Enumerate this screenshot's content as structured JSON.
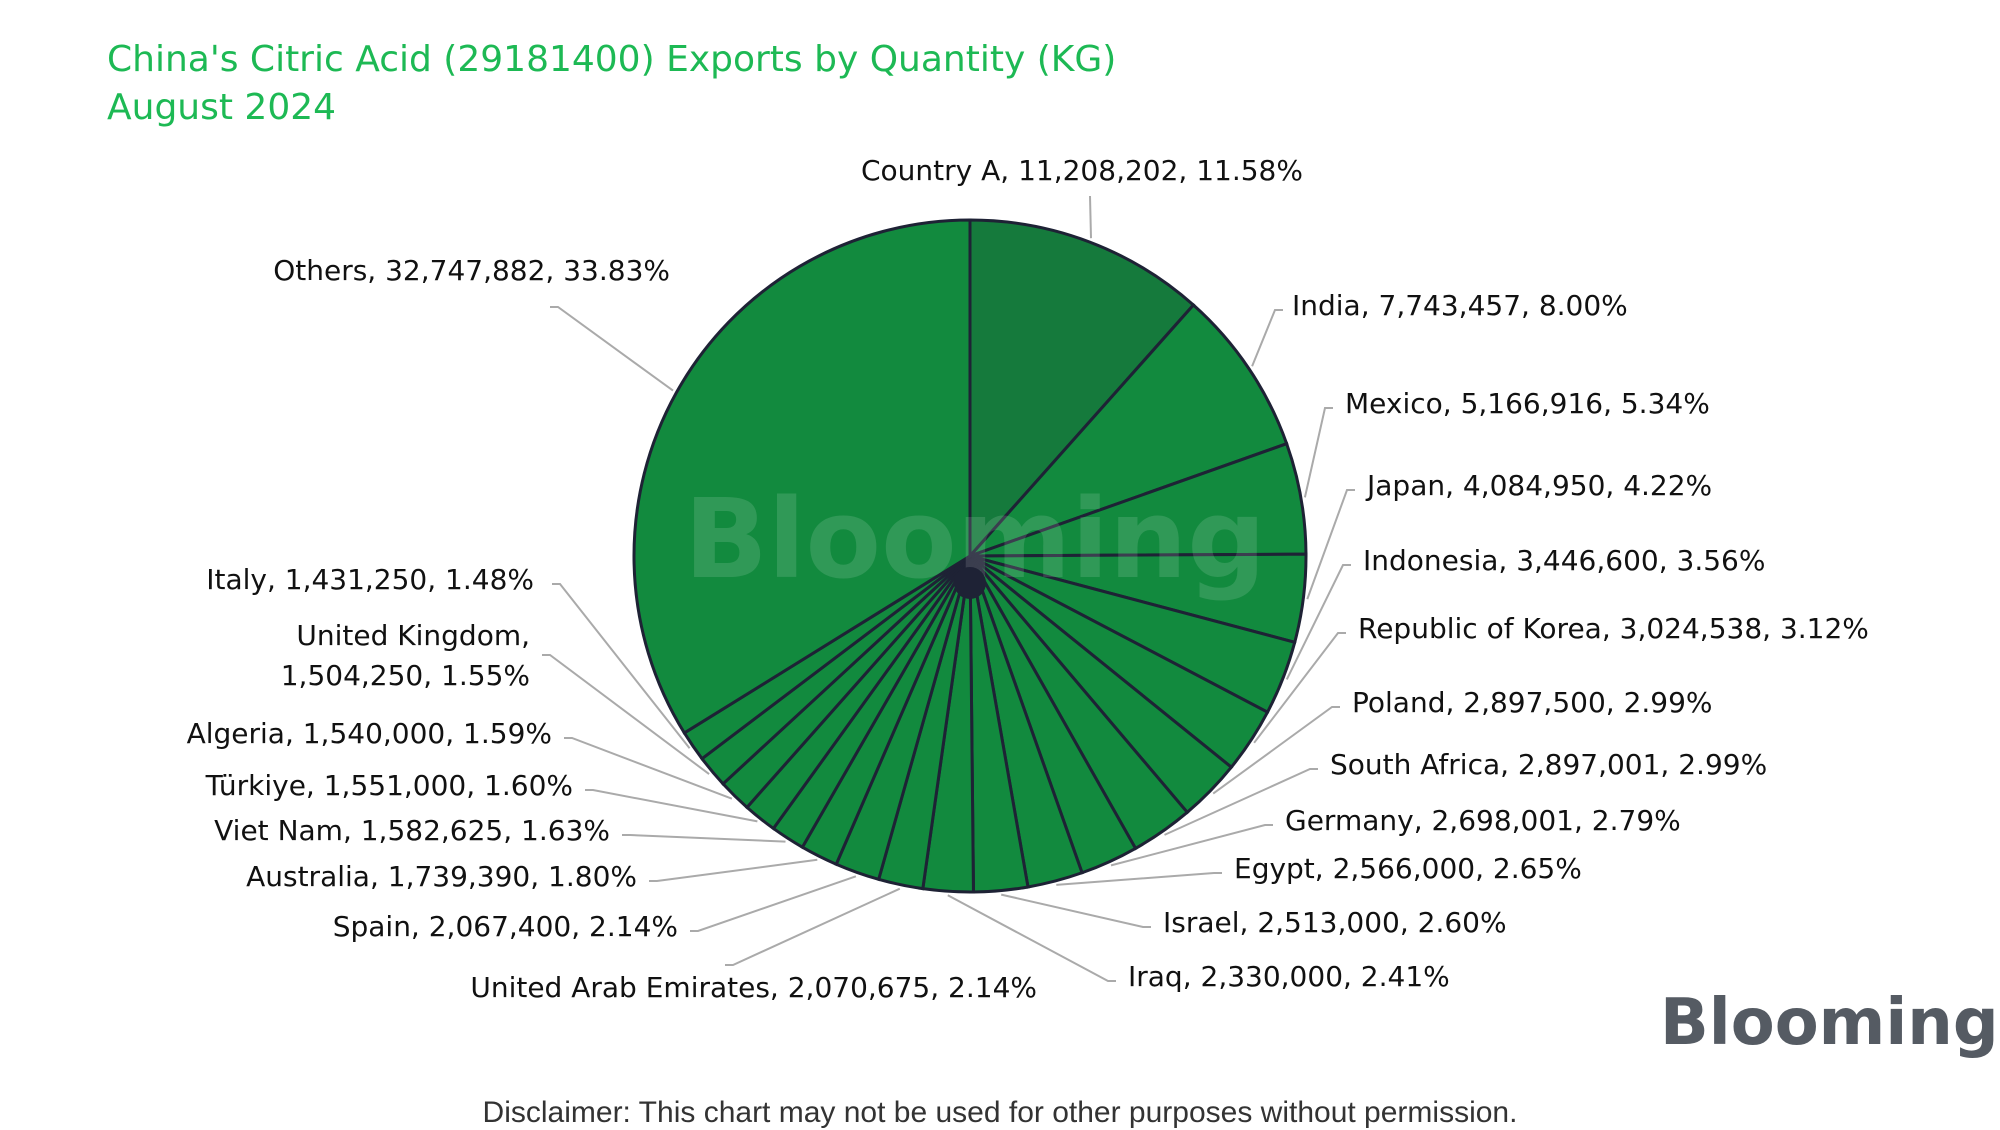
{
  "chart_data": {
    "type": "pie",
    "title": "China's Citric Acid (29181400) Exports by Quantity (KG)",
    "subtitle": "August 2024",
    "slices": [
      {
        "name": "Country A",
        "value": 11208202,
        "value_label": "11,208,202",
        "percent": "11.58%"
      },
      {
        "name": "India",
        "value": 7743457,
        "value_label": "7,743,457",
        "percent": "8.00%"
      },
      {
        "name": "Mexico",
        "value": 5166916,
        "value_label": "5,166,916",
        "percent": "5.34%"
      },
      {
        "name": "Japan",
        "value": 4084950,
        "value_label": "4,084,950",
        "percent": "4.22%"
      },
      {
        "name": "Indonesia",
        "value": 3446600,
        "value_label": "3,446,600",
        "percent": "3.56%"
      },
      {
        "name": "Republic of Korea",
        "value": 3024538,
        "value_label": "3,024,538",
        "percent": "3.12%"
      },
      {
        "name": "Poland",
        "value": 2897500,
        "value_label": "2,897,500",
        "percent": "2.99%"
      },
      {
        "name": "South Africa",
        "value": 2897001,
        "value_label": "2,897,001",
        "percent": "2.99%"
      },
      {
        "name": "Germany",
        "value": 2698001,
        "value_label": "2,698,001",
        "percent": "2.79%"
      },
      {
        "name": "Egypt",
        "value": 2566000,
        "value_label": "2,566,000",
        "percent": "2.65%"
      },
      {
        "name": "Israel",
        "value": 2513000,
        "value_label": "2,513,000",
        "percent": "2.60%"
      },
      {
        "name": "Iraq",
        "value": 2330000,
        "value_label": "2,330,000",
        "percent": "2.41%"
      },
      {
        "name": "United Arab Emirates",
        "value": 2070675,
        "value_label": "2,070,675",
        "percent": "2.14%"
      },
      {
        "name": "Spain",
        "value": 2067400,
        "value_label": "2,067,400",
        "percent": "2.14%"
      },
      {
        "name": "Australia",
        "value": 1739390,
        "value_label": "1,739,390",
        "percent": "1.80%"
      },
      {
        "name": "Viet Nam",
        "value": 1582625,
        "value_label": "1,582,625",
        "percent": "1.63%"
      },
      {
        "name": "Türkiye",
        "value": 1551000,
        "value_label": "1,551,000",
        "percent": "1.60%"
      },
      {
        "name": "Algeria",
        "value": 1540000,
        "value_label": "1,540,000",
        "percent": "1.59%"
      },
      {
        "name": "United Kingdom",
        "value": 1504250,
        "value_label": "1,504,250",
        "percent": "1.55%"
      },
      {
        "name": "Italy",
        "value": 1431250,
        "value_label": "1,431,250",
        "percent": "1.48%"
      },
      {
        "name": "Others",
        "value": 32747882,
        "value_label": "32,747,882",
        "percent": "33.83%"
      }
    ],
    "colors": {
      "first_slice": "#157a3c",
      "slice": "#128a3e",
      "border": "#1e2235",
      "leader": "#aaaaaa"
    }
  },
  "watermark": "Blooming",
  "logo": "Blooming",
  "disclaimer": "Disclaimer: This chart may not be used for other purposes without permission."
}
